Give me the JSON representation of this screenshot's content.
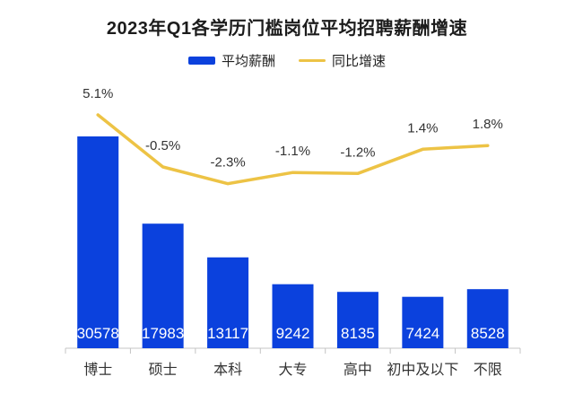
{
  "title": "2023年Q1各学历门槛岗位平均招聘薪酬增速",
  "legend": {
    "items": [
      {
        "label": "平均薪酬",
        "type": "bar",
        "color": "#0b41dd"
      },
      {
        "label": "同比增速",
        "type": "line",
        "color": "#edc345"
      }
    ]
  },
  "chart_data": {
    "type": "bar",
    "combo": "bar+line",
    "title": "2023年Q1各学历门槛岗位平均招聘薪酬增速",
    "categories": [
      "博士",
      "硕士",
      "本科",
      "大专",
      "高中",
      "初中及以下",
      "不限"
    ],
    "series": [
      {
        "name": "平均薪酬",
        "type": "bar",
        "color": "#0b41dd",
        "values": [
          30578,
          17983,
          13117,
          9242,
          8135,
          7424,
          8528
        ],
        "labels": [
          "30578",
          "17983",
          "13117",
          "9242",
          "8135",
          "7424",
          "8528"
        ],
        "label_position": "inside-bottom",
        "label_color": "#ffffff"
      },
      {
        "name": "同比增速",
        "type": "line",
        "color": "#edc345",
        "values": [
          5.1,
          -0.5,
          -2.3,
          -1.1,
          -1.2,
          1.4,
          1.8
        ],
        "labels": [
          "5.1%",
          "-0.5%",
          "-2.3%",
          "-1.1%",
          "-1.2%",
          "1.4%",
          "1.8%"
        ],
        "label_position": "above-point",
        "label_color": "#333333"
      }
    ],
    "xlabel": "",
    "ylabel": "",
    "legend_position": "top",
    "grid": false,
    "y_axis_visible": false,
    "x_axis_line": true
  },
  "colors": {
    "bar": "#0b41dd",
    "line": "#edc345",
    "axis": "#c4c4c4",
    "category_text": "#333333",
    "growth_text": "#333333",
    "title_text": "#1c1c1c",
    "bar_value_text": "#ffffff",
    "background": "#ffffff"
  }
}
